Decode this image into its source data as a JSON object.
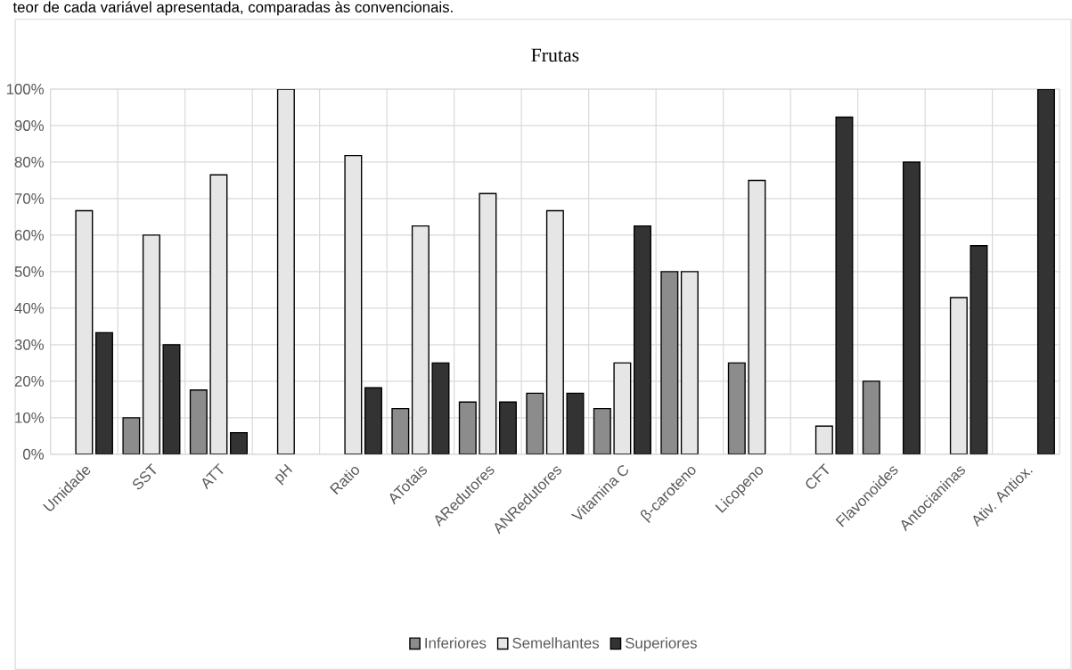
{
  "chart_data": {
    "type": "bar",
    "title": "Frutas",
    "annotations": [
      "teor de cada variável apresentada, comparadas às convencionais."
    ],
    "categories": [
      "Umidade",
      "SST",
      "ATT",
      "pH",
      "Ratio",
      "ATotais",
      "ARedutores",
      "ANRedutores",
      "Vitamina C",
      "β-caroteno",
      "Licopeno",
      "CFT",
      "Flavonoides",
      "Antocianinas",
      "Ativ. Antiox."
    ],
    "series": [
      {
        "name": "Inferiores",
        "color": "#8c8c8c",
        "values": [
          0,
          10,
          17.6,
          0,
          0,
          12.5,
          14.3,
          16.7,
          12.5,
          50,
          25,
          0,
          20,
          0,
          0
        ]
      },
      {
        "name": "Semelhantes",
        "color": "#e6e6e6",
        "values": [
          66.7,
          60,
          76.5,
          100,
          81.8,
          62.5,
          71.4,
          66.7,
          25,
          50,
          75,
          7.7,
          0,
          42.9,
          0
        ]
      },
      {
        "name": "Superiores",
        "color": "#333333",
        "values": [
          33.3,
          30,
          5.9,
          0,
          18.2,
          25,
          14.3,
          16.7,
          62.5,
          0,
          0,
          92.3,
          80,
          57.1,
          100
        ]
      }
    ],
    "ylim": [
      0,
      100
    ],
    "yticks": [
      {
        "value": 0,
        "label": "0%"
      },
      {
        "value": 10,
        "label": "10%"
      },
      {
        "value": 20,
        "label": "20%"
      },
      {
        "value": 30,
        "label": "30%"
      },
      {
        "value": 40,
        "label": "40%"
      },
      {
        "value": 50,
        "label": "50%"
      },
      {
        "value": 60,
        "label": "60%"
      },
      {
        "value": 70,
        "label": "70%"
      },
      {
        "value": 80,
        "label": "80%"
      },
      {
        "value": 90,
        "label": "90%"
      },
      {
        "value": 100,
        "label": "100%"
      }
    ],
    "grid": true,
    "legend": "bottom"
  }
}
